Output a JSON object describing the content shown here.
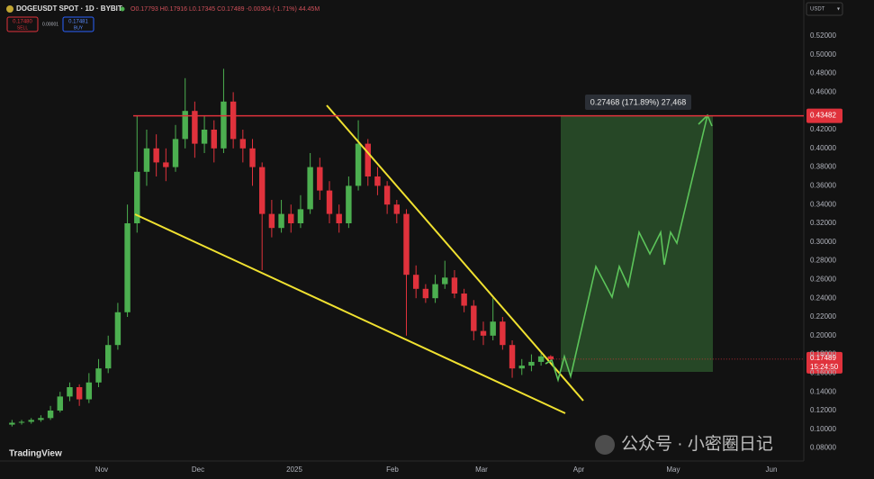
{
  "header": {
    "symbol": "DOGEUSDT SPOT · 1D · BYBIT",
    "ohlc_text": "O0.17793 H0.17916 L0.17345 C0.17489 -0.00304 (-1.71%) 44.45M",
    "sell_price": "0.17480",
    "sell": "SELL",
    "spread": "0.00001",
    "buy_price": "0.17481",
    "buy": "BUY",
    "currency": "USDT",
    "logo": "TradingView",
    "watermark": "公众号 · 小密圈日记"
  },
  "chart_data": {
    "type": "candlestick",
    "up_color": "#4caf50",
    "down_color": "#e0323c",
    "candles": [
      [
        0.105,
        0.11,
        0.103,
        0.107
      ],
      [
        0.107,
        0.11,
        0.105,
        0.108
      ],
      [
        0.108,
        0.112,
        0.106,
        0.11
      ],
      [
        0.11,
        0.115,
        0.108,
        0.112
      ],
      [
        0.112,
        0.125,
        0.11,
        0.12
      ],
      [
        0.12,
        0.14,
        0.118,
        0.135
      ],
      [
        0.135,
        0.15,
        0.13,
        0.145
      ],
      [
        0.145,
        0.148,
        0.125,
        0.132
      ],
      [
        0.132,
        0.16,
        0.128,
        0.15
      ],
      [
        0.15,
        0.175,
        0.145,
        0.165
      ],
      [
        0.165,
        0.2,
        0.16,
        0.19
      ],
      [
        0.19,
        0.235,
        0.185,
        0.225
      ],
      [
        0.225,
        0.34,
        0.22,
        0.32
      ],
      [
        0.32,
        0.435,
        0.31,
        0.375
      ],
      [
        0.375,
        0.42,
        0.36,
        0.4
      ],
      [
        0.4,
        0.415,
        0.37,
        0.385
      ],
      [
        0.385,
        0.4,
        0.365,
        0.38
      ],
      [
        0.38,
        0.425,
        0.375,
        0.41
      ],
      [
        0.41,
        0.475,
        0.4,
        0.44
      ],
      [
        0.44,
        0.45,
        0.39,
        0.405
      ],
      [
        0.405,
        0.435,
        0.395,
        0.42
      ],
      [
        0.42,
        0.43,
        0.385,
        0.4
      ],
      [
        0.4,
        0.485,
        0.395,
        0.45
      ],
      [
        0.45,
        0.46,
        0.4,
        0.41
      ],
      [
        0.41,
        0.42,
        0.385,
        0.4
      ],
      [
        0.4,
        0.41,
        0.36,
        0.38
      ],
      [
        0.38,
        0.385,
        0.27,
        0.33
      ],
      [
        0.33,
        0.345,
        0.305,
        0.315
      ],
      [
        0.315,
        0.345,
        0.31,
        0.33
      ],
      [
        0.33,
        0.34,
        0.31,
        0.32
      ],
      [
        0.32,
        0.35,
        0.315,
        0.335
      ],
      [
        0.335,
        0.395,
        0.33,
        0.38
      ],
      [
        0.38,
        0.39,
        0.345,
        0.355
      ],
      [
        0.355,
        0.365,
        0.32,
        0.33
      ],
      [
        0.33,
        0.34,
        0.31,
        0.32
      ],
      [
        0.32,
        0.37,
        0.315,
        0.36
      ],
      [
        0.36,
        0.43,
        0.355,
        0.405
      ],
      [
        0.405,
        0.41,
        0.36,
        0.37
      ],
      [
        0.37,
        0.38,
        0.35,
        0.36
      ],
      [
        0.36,
        0.365,
        0.33,
        0.34
      ],
      [
        0.34,
        0.345,
        0.32,
        0.33
      ],
      [
        0.33,
        0.335,
        0.2,
        0.265
      ],
      [
        0.265,
        0.275,
        0.24,
        0.25
      ],
      [
        0.25,
        0.255,
        0.235,
        0.24
      ],
      [
        0.24,
        0.265,
        0.235,
        0.255
      ],
      [
        0.255,
        0.28,
        0.25,
        0.262
      ],
      [
        0.262,
        0.27,
        0.24,
        0.245
      ],
      [
        0.245,
        0.25,
        0.225,
        0.232
      ],
      [
        0.232,
        0.238,
        0.195,
        0.205
      ],
      [
        0.205,
        0.215,
        0.19,
        0.2
      ],
      [
        0.2,
        0.24,
        0.195,
        0.215
      ],
      [
        0.215,
        0.22,
        0.185,
        0.19
      ],
      [
        0.19,
        0.195,
        0.155,
        0.165
      ],
      [
        0.165,
        0.175,
        0.158,
        0.168
      ],
      [
        0.168,
        0.18,
        0.162,
        0.172
      ],
      [
        0.172,
        0.182,
        0.168,
        0.17793
      ],
      [
        0.17793,
        0.17916,
        0.17345,
        0.17489
      ]
    ],
    "xlim": [
      -0.5,
      82.5
    ],
    "xticks": [
      {
        "value": 9.33,
        "label": "Nov"
      },
      {
        "value": 19.34,
        "label": "Dec"
      },
      {
        "value": 29.35,
        "label": "2025"
      },
      {
        "value": 39.55,
        "label": "Feb"
      },
      {
        "value": 48.81,
        "label": "Mar"
      },
      {
        "value": 58.92,
        "label": "Apr"
      },
      {
        "value": 68.74,
        "label": "May"
      },
      {
        "value": 78.94,
        "label": "Jun"
      }
    ],
    "ylim": [
      0.06615,
      0.55846
    ],
    "yticks": [
      {
        "value": 0.08,
        "label": "0.08000"
      },
      {
        "value": 0.1,
        "label": "0.10000"
      },
      {
        "value": 0.12,
        "label": "0.12000"
      },
      {
        "value": 0.14,
        "label": "0.14000"
      },
      {
        "value": 0.16,
        "label": "0.16000"
      },
      {
        "value": 0.18,
        "label": "0.18000"
      },
      {
        "value": 0.2,
        "label": "0.20000"
      },
      {
        "value": 0.22,
        "label": "0.22000"
      },
      {
        "value": 0.24,
        "label": "0.24000"
      },
      {
        "value": 0.26,
        "label": "0.26000"
      },
      {
        "value": 0.28,
        "label": "0.28000"
      },
      {
        "value": 0.3,
        "label": "0.30000"
      },
      {
        "value": 0.32,
        "label": "0.32000"
      },
      {
        "value": 0.34,
        "label": "0.34000"
      },
      {
        "value": 0.36,
        "label": "0.36000"
      },
      {
        "value": 0.38,
        "label": "0.38000"
      },
      {
        "value": 0.4,
        "label": "0.40000"
      },
      {
        "value": 0.42,
        "label": "0.42000"
      },
      {
        "value": 0.46,
        "label": "0.46000"
      },
      {
        "value": 0.48,
        "label": "0.48000"
      },
      {
        "value": 0.5,
        "label": "0.50000"
      },
      {
        "value": 0.52,
        "label": "0.52000"
      }
    ],
    "price_line": 0.43482,
    "last_price": 0.17489,
    "countdown": "15:24:50",
    "measure": "0.27468 (171.89%) 27,468"
  }
}
